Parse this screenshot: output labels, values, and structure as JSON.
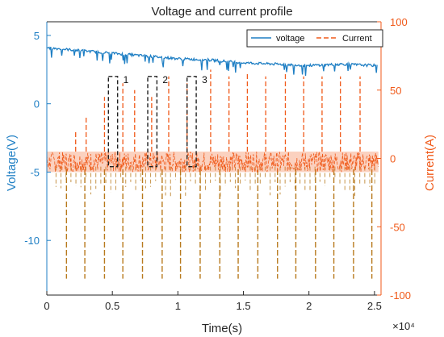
{
  "chart_data": {
    "type": "line",
    "title": "Voltage and current profile",
    "xlabel": "Time(s)",
    "x_exponent": "×10⁴",
    "ylabel_left": "Voltage(V)",
    "ylabel_right": "Current(A)",
    "xlim": [
      0,
      25500
    ],
    "ylim_left": [
      -14,
      6
    ],
    "ylim_right": [
      -100,
      100
    ],
    "x_ticks": [
      0,
      5000,
      10000,
      15000,
      20000,
      25000
    ],
    "x_tick_labels": [
      "0",
      "0.5",
      "1",
      "1.5",
      "2",
      "2.5"
    ],
    "y_left_ticks": [
      5,
      0,
      -5,
      -10
    ],
    "y_left_tick_labels": [
      "5",
      "0",
      "-5",
      "-10"
    ],
    "y_right_ticks": [
      100,
      50,
      0,
      -50,
      -100
    ],
    "y_right_tick_labels": [
      "100",
      "50",
      "0",
      "-50",
      "-100"
    ],
    "legend": {
      "position": "top-right",
      "entries": [
        "voltage",
        "Current"
      ]
    },
    "colors": {
      "voltage": "#1f7fc4",
      "current": "#f05a1a",
      "current_dark": "#b87a1e",
      "annotation": "#222222",
      "axis": "#262626"
    },
    "grid": false,
    "series": [
      {
        "name": "voltage",
        "axis": "left",
        "style": "solid",
        "x": [
          0,
          2500,
          5000,
          7500,
          10000,
          12500,
          15000,
          17500,
          20000,
          22500,
          25000
        ],
        "y": [
          4.1,
          3.9,
          3.7,
          3.5,
          3.3,
          3.2,
          3.0,
          2.9,
          2.8,
          2.9,
          2.8
        ]
      },
      {
        "name": "Current",
        "axis": "right",
        "style": "dashed",
        "baseline_band": [
          -10,
          5
        ],
        "negative_pulse_level": -88,
        "negative_pulse_x": [
          1500,
          2900,
          4400,
          5800,
          7300,
          8800,
          10200,
          11700,
          13200,
          14600,
          16100,
          17600,
          19000,
          20500,
          21900,
          23400,
          24800
        ],
        "positive_pulse_peaks": [
          {
            "x": 2200,
            "y": 20
          },
          {
            "x": 3000,
            "y": 30
          },
          {
            "x": 4400,
            "y": 45
          },
          {
            "x": 5800,
            "y": 55
          },
          {
            "x": 6700,
            "y": 50
          },
          {
            "x": 8000,
            "y": 45
          },
          {
            "x": 9300,
            "y": 60
          },
          {
            "x": 10700,
            "y": 55
          },
          {
            "x": 12500,
            "y": 65
          },
          {
            "x": 13900,
            "y": 60
          },
          {
            "x": 15300,
            "y": 62
          },
          {
            "x": 16700,
            "y": 60
          },
          {
            "x": 18200,
            "y": 62
          },
          {
            "x": 19600,
            "y": 60
          },
          {
            "x": 21000,
            "y": 60
          },
          {
            "x": 22400,
            "y": 60
          },
          {
            "x": 23900,
            "y": 60
          }
        ]
      }
    ],
    "annotations": [
      {
        "label": "1",
        "x_range": [
          4700,
          5400
        ],
        "y_range_left": [
          -4.6,
          2
        ]
      },
      {
        "label": "2",
        "x_range": [
          7700,
          8400
        ],
        "y_range_left": [
          -4.6,
          2
        ]
      },
      {
        "label": "3",
        "x_range": [
          10700,
          11400
        ],
        "y_range_left": [
          -4.6,
          2
        ]
      }
    ]
  }
}
